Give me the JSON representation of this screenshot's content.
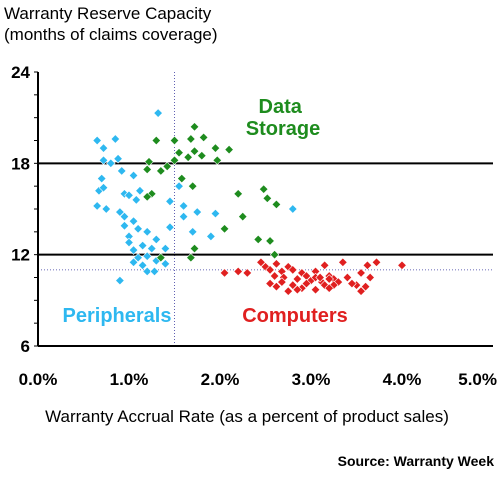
{
  "chart_data": {
    "type": "scatter",
    "title": "Warranty Reserve Capacity",
    "subtitle": "(months of claims coverage)",
    "xlabel": "Warranty Accrual Rate (as a percent of product sales)",
    "ylabel": "",
    "source": "Source: Warranty Week",
    "xlim": [
      0,
      5
    ],
    "ylim": [
      6,
      24
    ],
    "x_ticks": [
      "0.0%",
      "1.0%",
      "2.0%",
      "3.0%",
      "4.0%",
      "5.0%"
    ],
    "y_ticks": [
      "6",
      "12",
      "18",
      "24"
    ],
    "reference_lines": {
      "y_solid": [
        12,
        18
      ],
      "y_dotted": 11,
      "x_dotted": 1.5
    },
    "series": [
      {
        "name": "Peripherals",
        "label": "Peripherals",
        "color": "#2eb8f0",
        "points": [
          [
            0.65,
            19.5
          ],
          [
            0.72,
            19.0
          ],
          [
            0.85,
            19.6
          ],
          [
            1.32,
            21.3
          ],
          [
            0.72,
            18.2
          ],
          [
            0.8,
            18.0
          ],
          [
            0.88,
            18.3
          ],
          [
            0.92,
            17.5
          ],
          [
            0.7,
            17.0
          ],
          [
            1.05,
            17.2
          ],
          [
            0.67,
            16.2
          ],
          [
            0.72,
            16.4
          ],
          [
            0.95,
            16.0
          ],
          [
            1.0,
            15.9
          ],
          [
            1.08,
            15.6
          ],
          [
            1.12,
            16.2
          ],
          [
            0.75,
            15.0
          ],
          [
            0.9,
            14.8
          ],
          [
            0.95,
            14.5
          ],
          [
            1.05,
            14.2
          ],
          [
            0.65,
            15.2
          ],
          [
            0.95,
            13.9
          ],
          [
            1.1,
            13.7
          ],
          [
            1.2,
            13.5
          ],
          [
            1.0,
            13.2
          ],
          [
            1.3,
            13.0
          ],
          [
            1.0,
            12.8
          ],
          [
            1.15,
            12.6
          ],
          [
            1.05,
            12.3
          ],
          [
            1.25,
            12.4
          ],
          [
            1.4,
            12.4
          ],
          [
            1.1,
            11.8
          ],
          [
            1.2,
            11.9
          ],
          [
            1.3,
            11.6
          ],
          [
            1.05,
            11.5
          ],
          [
            1.15,
            11.3
          ],
          [
            1.4,
            11.4
          ],
          [
            1.2,
            10.9
          ],
          [
            1.28,
            10.9
          ],
          [
            0.9,
            10.3
          ],
          [
            1.25,
            16.0
          ],
          [
            1.45,
            15.5
          ],
          [
            1.55,
            16.5
          ],
          [
            1.6,
            15.2
          ],
          [
            1.75,
            14.8
          ],
          [
            1.6,
            14.5
          ],
          [
            1.7,
            13.5
          ],
          [
            1.9,
            13.2
          ],
          [
            1.45,
            13.8
          ],
          [
            1.95,
            14.7
          ],
          [
            2.8,
            15.0
          ]
        ]
      },
      {
        "name": "Data Storage",
        "label": "Data Storage",
        "color": "#1e8c1e",
        "points": [
          [
            1.72,
            20.4
          ],
          [
            1.82,
            19.7
          ],
          [
            1.3,
            19.5
          ],
          [
            1.5,
            19.5
          ],
          [
            1.68,
            19.6
          ],
          [
            1.55,
            18.7
          ],
          [
            1.65,
            18.4
          ],
          [
            1.72,
            18.8
          ],
          [
            1.8,
            18.5
          ],
          [
            1.5,
            18.2
          ],
          [
            1.22,
            18.1
          ],
          [
            1.95,
            19.0
          ],
          [
            2.1,
            18.9
          ],
          [
            1.97,
            18.2
          ],
          [
            1.2,
            17.6
          ],
          [
            1.35,
            17.5
          ],
          [
            1.42,
            17.8
          ],
          [
            1.58,
            17.0
          ],
          [
            1.7,
            16.5
          ],
          [
            1.25,
            16.0
          ],
          [
            1.2,
            15.8
          ],
          [
            2.2,
            16.0
          ],
          [
            2.48,
            16.3
          ],
          [
            2.52,
            15.7
          ],
          [
            2.62,
            15.3
          ],
          [
            2.25,
            14.5
          ],
          [
            2.05,
            13.7
          ],
          [
            2.42,
            13.0
          ],
          [
            2.55,
            12.9
          ],
          [
            1.72,
            12.4
          ],
          [
            1.68,
            11.8
          ],
          [
            1.35,
            11.8
          ],
          [
            2.6,
            12.0
          ]
        ]
      },
      {
        "name": "Computers",
        "label": "Computers",
        "color": "#e02020",
        "points": [
          [
            2.45,
            11.5
          ],
          [
            2.5,
            11.2
          ],
          [
            2.55,
            11.0
          ],
          [
            2.62,
            11.4
          ],
          [
            2.68,
            10.9
          ],
          [
            2.75,
            11.2
          ],
          [
            2.8,
            11.0
          ],
          [
            2.9,
            10.8
          ],
          [
            3.05,
            10.9
          ],
          [
            3.15,
            11.3
          ],
          [
            3.35,
            11.5
          ],
          [
            3.62,
            11.3
          ],
          [
            3.72,
            11.5
          ],
          [
            4.0,
            11.3
          ],
          [
            2.3,
            10.8
          ],
          [
            2.05,
            10.8
          ],
          [
            2.2,
            10.9
          ],
          [
            2.6,
            10.6
          ],
          [
            2.7,
            10.5
          ],
          [
            2.85,
            10.4
          ],
          [
            2.95,
            10.6
          ],
          [
            3.0,
            10.3
          ],
          [
            3.05,
            10.5
          ],
          [
            3.12,
            10.2
          ],
          [
            3.2,
            10.6
          ],
          [
            3.25,
            10.4
          ],
          [
            3.3,
            10.2
          ],
          [
            3.4,
            10.5
          ],
          [
            3.55,
            10.8
          ],
          [
            3.65,
            10.5
          ],
          [
            3.25,
            10.0
          ],
          [
            3.15,
            10.0
          ],
          [
            2.55,
            10.1
          ],
          [
            2.62,
            9.9
          ],
          [
            2.8,
            10.0
          ],
          [
            2.9,
            9.8
          ],
          [
            2.95,
            10.1
          ],
          [
            3.05,
            9.7
          ],
          [
            3.2,
            9.8
          ],
          [
            3.5,
            10.0
          ],
          [
            3.55,
            9.6
          ],
          [
            2.75,
            9.6
          ],
          [
            2.85,
            9.7
          ],
          [
            2.68,
            10.2
          ],
          [
            3.1,
            10.5
          ],
          [
            3.2,
            10.4
          ],
          [
            3.45,
            10.1
          ],
          [
            3.6,
            9.9
          ]
        ]
      }
    ]
  }
}
